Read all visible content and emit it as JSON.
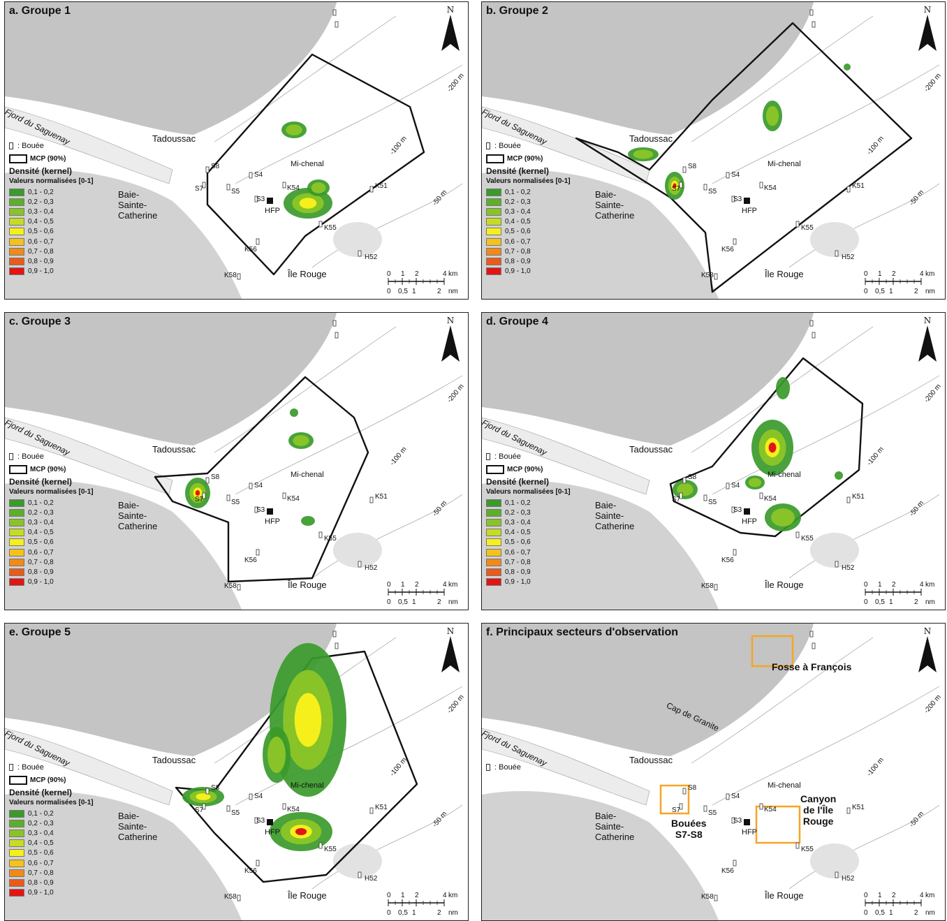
{
  "panels": [
    {
      "title": "a. Groupe 1",
      "has_legend": true
    },
    {
      "title": "b. Groupe 2",
      "has_legend": true
    },
    {
      "title": "c. Groupe 3",
      "has_legend": true
    },
    {
      "title": "d. Groupe 4",
      "has_legend": true
    },
    {
      "title": "e. Groupe 5",
      "has_legend": true
    },
    {
      "title": "f. Principaux secteurs d'observation",
      "has_legend": false
    }
  ],
  "north_label": "N",
  "place_labels": {
    "fjord": "Fjord du Saguenay",
    "tadoussac": "Tadoussac",
    "baie": "Baie-\nSainte-\nCatherine",
    "ile_rouge": "Île Rouge",
    "mi_chenal": "Mi-chenal",
    "hfp": "HFP",
    "cap_granite": "Cap de Granite"
  },
  "buoys": [
    "S8",
    "S7",
    "S4",
    "S5",
    "S3",
    "K54",
    "K51",
    "K55",
    "K56",
    "K58",
    "H52"
  ],
  "depth_labels": {
    "d200": "-200 m",
    "d100": "-100 m",
    "d50": "-50 m"
  },
  "legend": {
    "buoy_label": "Bouée",
    "mcp_label": "MCP (90%)",
    "density_title": "Densité (kernel)",
    "density_sub": "Valeurs normalisées [0-1]",
    "classes": [
      "0,1 - 0,2",
      "0,2 - 0,3",
      "0,3 - 0,4",
      "0,4 - 0,5",
      "0,5 - 0,6",
      "0,6 - 0,7",
      "0,7 - 0,8",
      "0,8 - 0,9",
      "0,9 - 1,0"
    ],
    "colors": [
      "#3a9a2a",
      "#5caf2a",
      "#88c428",
      "#c6dc22",
      "#f5f01c",
      "#f5c21a",
      "#f18a18",
      "#ea5a18",
      "#e21515"
    ]
  },
  "scale": {
    "km_ticks": [
      "0",
      "1",
      "2",
      "4"
    ],
    "km_unit": "km",
    "nm_ticks": [
      "0",
      "0,5",
      "1",
      "2"
    ],
    "nm_unit": "nm"
  },
  "sectors": {
    "fosse": "Fosse à François",
    "canyon": "Canyon\nde l'Île\nRouge",
    "bouees": "Bouées\nS7-S8",
    "sector_color": "#f5a623"
  }
}
